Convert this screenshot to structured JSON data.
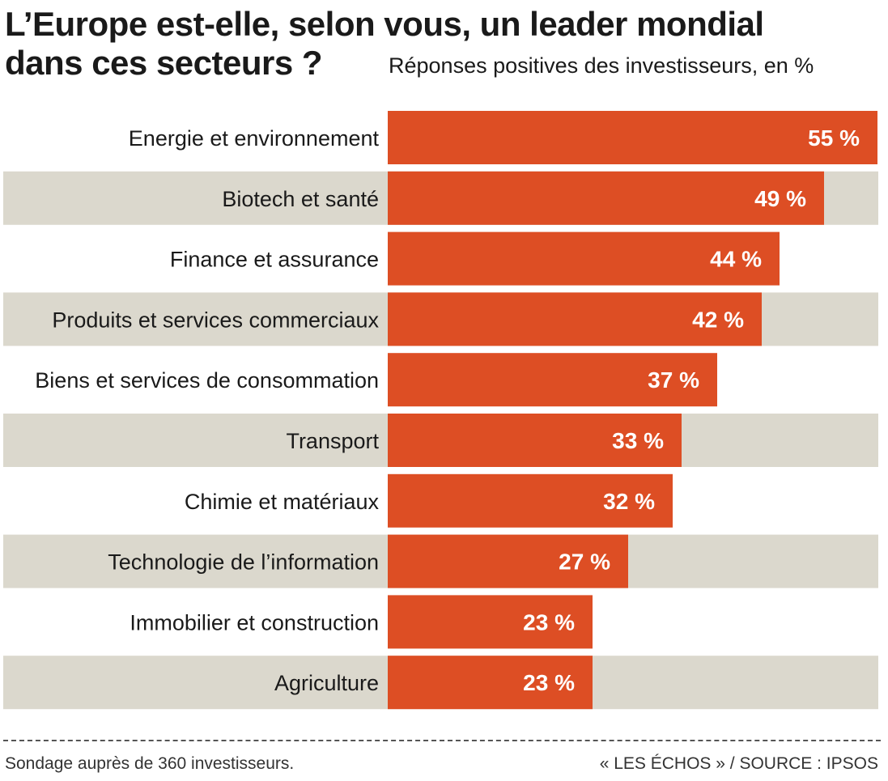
{
  "header": {
    "title_line1": "L’Europe est-elle, selon vous, un leader mondial",
    "title_line2": "dans ces secteurs ?",
    "subtitle": "Réponses positives des investisseurs, en %"
  },
  "chart_data": {
    "type": "bar",
    "orientation": "horizontal",
    "categories": [
      "Energie et environnement",
      "Biotech et santé",
      "Finance et assurance",
      "Produits et services commerciaux",
      "Biens et services de consommation",
      "Transport",
      "Chimie et matériaux",
      "Technologie de l’information",
      "Immobilier et construction",
      "Agriculture"
    ],
    "values": [
      55,
      49,
      44,
      42,
      37,
      33,
      32,
      27,
      23,
      23
    ],
    "value_labels": [
      "55 %",
      "49 %",
      "44 %",
      "42 %",
      "37 %",
      "33 %",
      "32 %",
      "27 %",
      "23 %",
      "23 %"
    ],
    "xlim": [
      0,
      55
    ],
    "grid": false,
    "legend": "none",
    "colors": {
      "bar": "#dd4e24",
      "band": "#dbd8cd",
      "value_label": "#ffffff"
    }
  },
  "footer": {
    "note": "Sondage auprès de 360 investisseurs.",
    "source": "« LES ÉCHOS » / SOURCE : IPSOS"
  }
}
